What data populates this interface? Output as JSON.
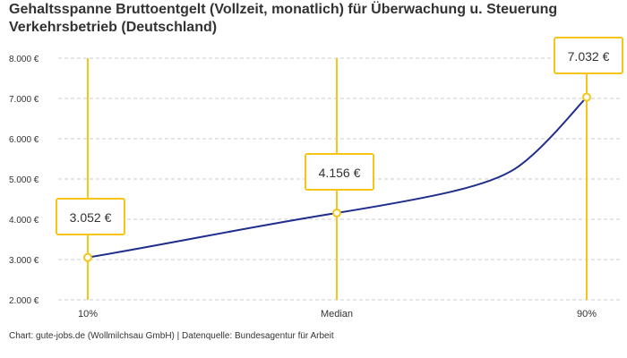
{
  "chart_data": {
    "type": "line",
    "title": "Gehaltsspanne Bruttoentgelt (Vollzeit, monatlich) für Überwachung u. Steuerung Verkehrsbetrieb (Deutschland)",
    "categories": [
      "10%",
      "Median",
      "90%"
    ],
    "values": [
      3052,
      4156,
      7032
    ],
    "data_labels": [
      "3.052 €",
      "4.156 €",
      "7.032 €"
    ],
    "yticks": [
      "2.000 €",
      "3.000 €",
      "4.000 €",
      "5.000 €",
      "6.000 €",
      "7.000 €",
      "8.000 €"
    ],
    "ylim": [
      2000,
      8000
    ],
    "grid": true,
    "colors": {
      "line": "#1f2e8c",
      "marker": "#f5c518",
      "grid": "#cccccc"
    }
  },
  "footer": "Chart: gute-jobs.de (Wollmilchsau GmbH) | Datenquelle: Bundesagentur für Arbeit"
}
